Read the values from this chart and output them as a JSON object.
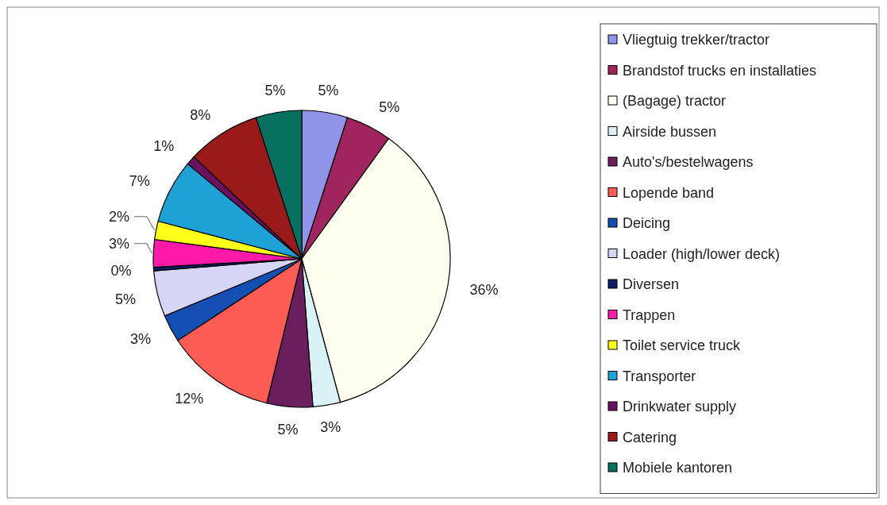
{
  "chart_data": {
    "type": "pie",
    "categories": [
      "Vliegtuig trekker/tractor",
      "Brandstof trucks en installaties",
      "(Bagage) tractor",
      "Airside bussen",
      "Auto's/bestelwagens",
      "Lopende band",
      "Deicing",
      "Loader (high/lower deck)",
      "Diversen",
      "Trappen",
      "Toilet service truck",
      "Transporter",
      "Drinkwater supply",
      "Catering",
      "Mobiele kantoren"
    ],
    "values": [
      5,
      5,
      36,
      3,
      5,
      12,
      3,
      5,
      0.4,
      3,
      2,
      7,
      1,
      8,
      5
    ],
    "colors": [
      "#8f94e8",
      "#a0245e",
      "#fffff0",
      "#d8f2f5",
      "#6a1e5e",
      "#fd5c55",
      "#1450b4",
      "#d5d5f5",
      "#0c1d66",
      "#fd1aa8",
      "#ffff1a",
      "#1ea2d6",
      "#6e1060",
      "#9a1a1a",
      "#08705e"
    ],
    "value_labels": [
      "5%",
      "5%",
      "36%",
      "3%",
      "5%",
      "12%",
      "3%",
      "5%",
      "0%",
      "3%",
      "2%",
      "7%",
      "1%",
      "8%",
      "5%"
    ],
    "legend": "right"
  }
}
